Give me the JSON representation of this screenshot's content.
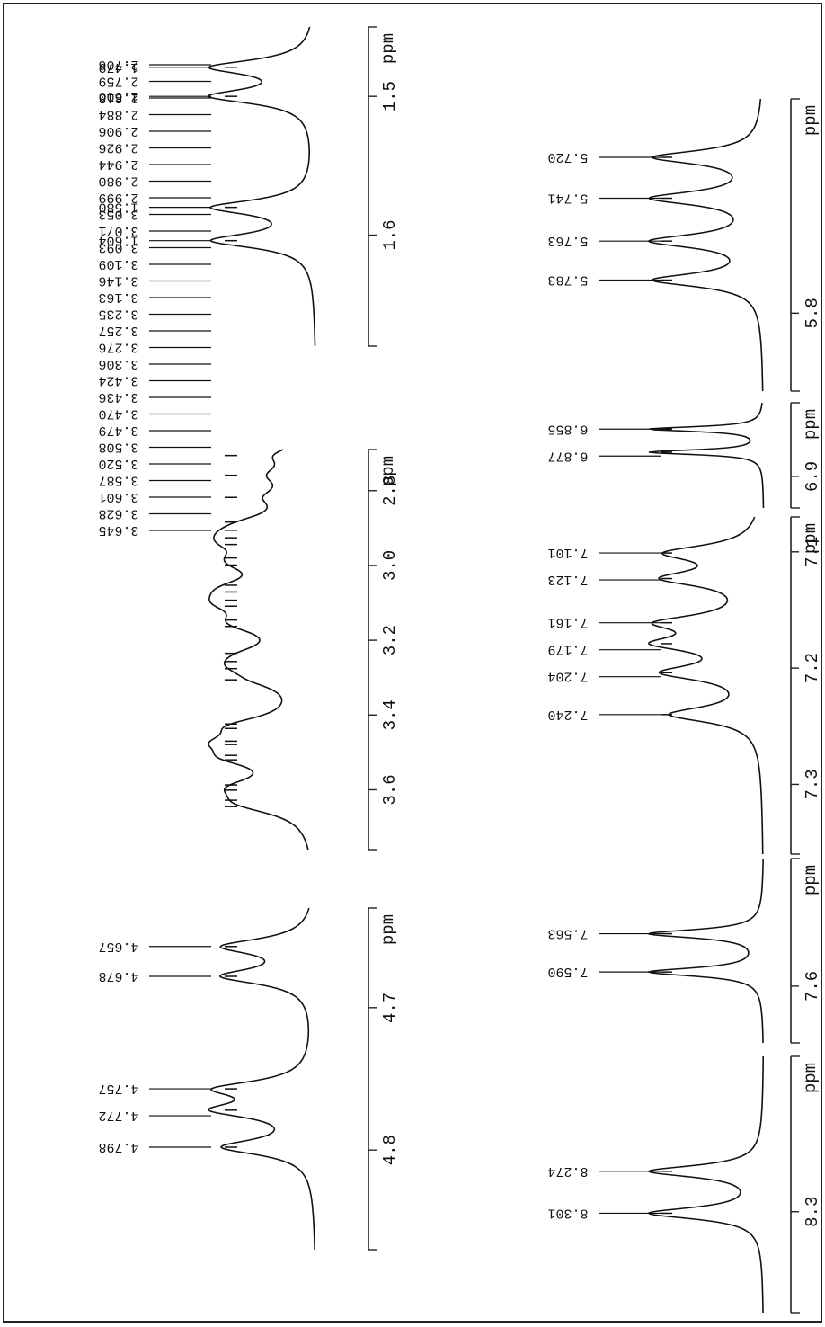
{
  "chart_data": [
    {
      "type": "nmr",
      "xlabel": "ppm",
      "xlim": [
        1.45,
        1.68
      ],
      "xticks": [
        1.5,
        1.6
      ],
      "values": [
        1.479,
        1.5,
        1.58,
        1.604
      ],
      "value_labels": [
        "1.479",
        "1.500",
        "1.580",
        "1.604"
      ]
    },
    {
      "type": "nmr",
      "xlabel": "ppm",
      "xlim": [
        2.69,
        3.76
      ],
      "xticks": [
        2.8,
        {
          "value": 3,
          "label": "3.0"
        },
        3.2,
        3.4,
        3.6
      ],
      "values": [
        2.706,
        2.759,
        2.818,
        2.884,
        2.906,
        2.926,
        2.944,
        2.98,
        2.999,
        3.053,
        3.071,
        3.093,
        3.109,
        3.146,
        3.163,
        3.235,
        3.257,
        3.276,
        3.306,
        3.424,
        3.436,
        3.47,
        3.479,
        3.508,
        3.52,
        3.587,
        3.601,
        3.628,
        3.645
      ],
      "value_labels": [
        "2.706",
        "2.759",
        "2.818",
        "2.884",
        "2.906",
        "2.926",
        "2.944",
        "2.980",
        "2.999",
        "3.053",
        "3.071",
        "3.093",
        "3.109",
        "3.146",
        "3.163",
        "3.235",
        "3.257",
        "3.276",
        "3.306",
        "3.424",
        "3.436",
        "3.470",
        "3.479",
        "3.508",
        "3.520",
        "3.587",
        "3.601",
        "3.628",
        "3.645"
      ]
    },
    {
      "type": "nmr",
      "xlabel": "ppm",
      "xlim": [
        4.63,
        4.87
      ],
      "xticks": [
        4.7,
        4.8
      ],
      "values": [
        4.657,
        4.678,
        4.757,
        4.772,
        4.798
      ],
      "value_labels": [
        "4.657",
        "4.678",
        "4.757",
        "4.772",
        "4.798"
      ]
    },
    {
      "type": "nmr",
      "xlabel": "ppm",
      "xlim": [
        5.69,
        5.84
      ],
      "xticks": [
        5.8
      ],
      "values": [
        5.72,
        5.741,
        5.763,
        5.783
      ],
      "value_labels": [
        "5.720",
        "5.741",
        "5.763",
        "5.783"
      ]
    },
    {
      "type": "nmr",
      "xlabel": "ppm",
      "xlim": [
        6.83,
        6.93
      ],
      "xticks": [
        6.9
      ],
      "values": [
        6.855,
        6.877
      ],
      "value_labels": [
        "6.855",
        "6.877"
      ]
    },
    {
      "type": "nmr",
      "xlabel": "ppm",
      "xlim": [
        7.07,
        7.36
      ],
      "xticks": [
        7.1,
        7.2,
        7.3
      ],
      "values": [
        7.101,
        7.123,
        7.161,
        7.179,
        7.204,
        7.24
      ],
      "value_labels": [
        "7.101",
        "7.123",
        "7.161",
        "7.179",
        "7.204",
        "7.240"
      ]
    },
    {
      "type": "nmr",
      "xlabel": "ppm",
      "xlim": [
        7.51,
        7.64
      ],
      "xticks": [
        7.6
      ],
      "values": [
        7.563,
        7.59
      ],
      "value_labels": [
        "7.563",
        "7.590"
      ]
    },
    {
      "type": "nmr",
      "xlabel": "ppm",
      "xlim": [
        8.2,
        8.365
      ],
      "xticks": [
        8.3
      ],
      "values": [
        8.274,
        8.301
      ],
      "value_labels": [
        "8.274",
        "8.301"
      ]
    }
  ]
}
